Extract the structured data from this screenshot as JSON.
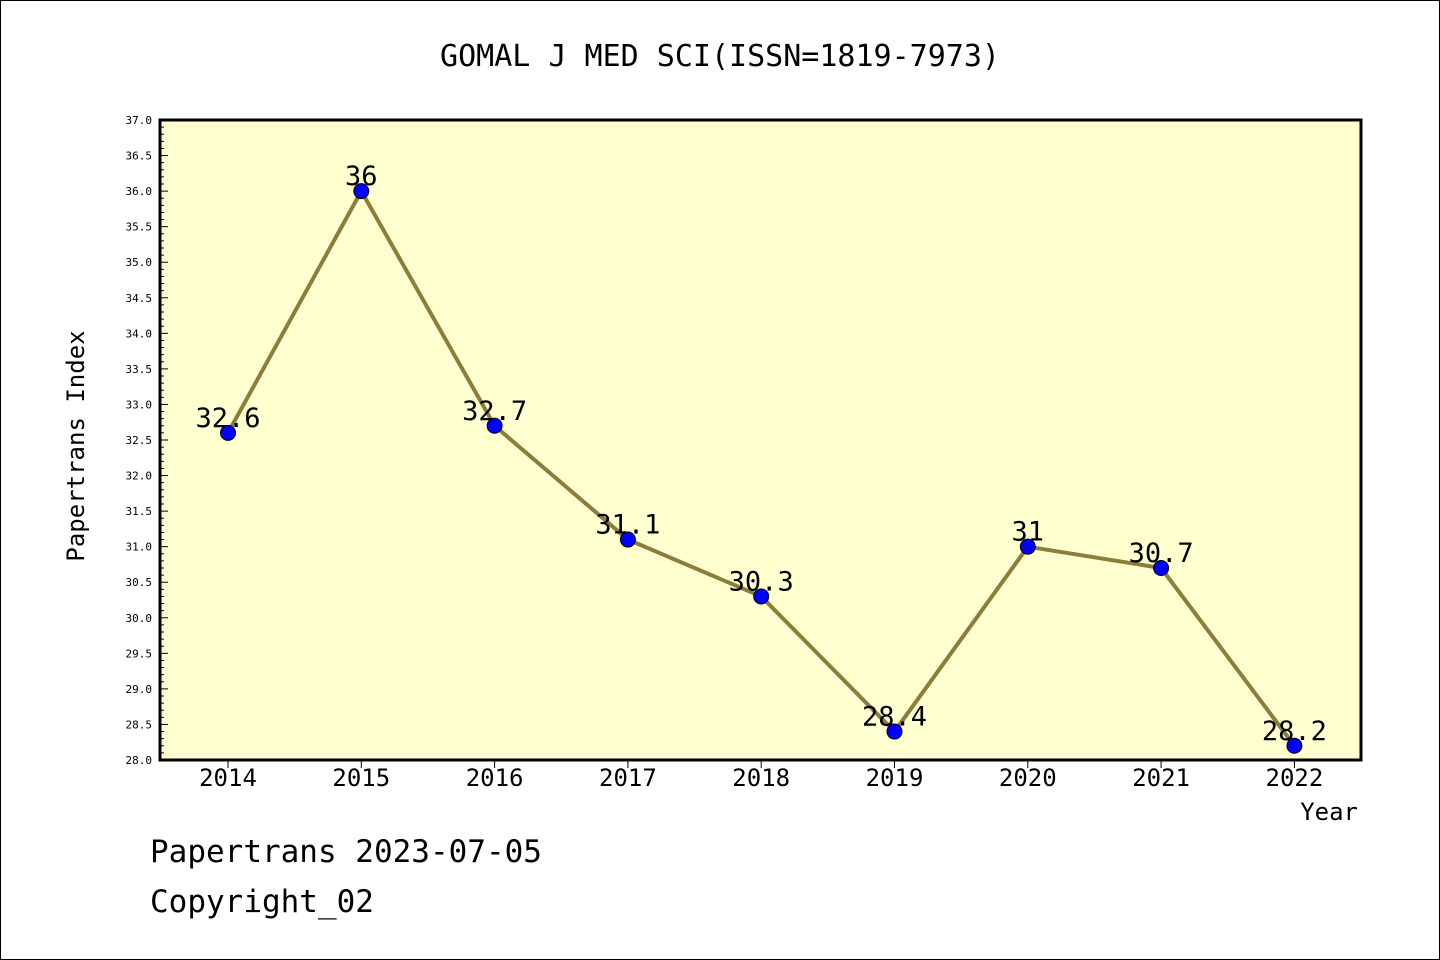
{
  "chart_data": {
    "type": "line",
    "title": "GOMAL J MED SCI(ISSN=1819-7973)",
    "xlabel": "Year",
    "ylabel": "Papertrans Index",
    "categories": [
      "2014",
      "2015",
      "2016",
      "2017",
      "2018",
      "2019",
      "2020",
      "2021",
      "2022"
    ],
    "series": [
      {
        "values": [
          32.6,
          36,
          32.7,
          31.1,
          30.3,
          28.4,
          31,
          30.7,
          28.2
        ]
      }
    ],
    "data_labels": [
      "32.6",
      "36",
      "32.7",
      "31.1",
      "30.3",
      "28.4",
      "31",
      "30.7",
      "28.2"
    ],
    "ylim": [
      28.0,
      37.0
    ],
    "y_ticks": [
      "28.0",
      "28.5",
      "29.0",
      "29.5",
      "30.0",
      "30.5",
      "31.0",
      "31.5",
      "32.0",
      "32.5",
      "33.0",
      "33.5",
      "34.0",
      "34.5",
      "35.0",
      "35.5",
      "36.0",
      "36.5",
      "37.0"
    ],
    "grid": false,
    "colors": {
      "plot_background": "#ffffd0",
      "line": "#8b7d3a",
      "marker": "#0000ff"
    }
  },
  "footer": {
    "line1": "Papertrans 2023-07-05",
    "line2": "Copyright_02"
  }
}
